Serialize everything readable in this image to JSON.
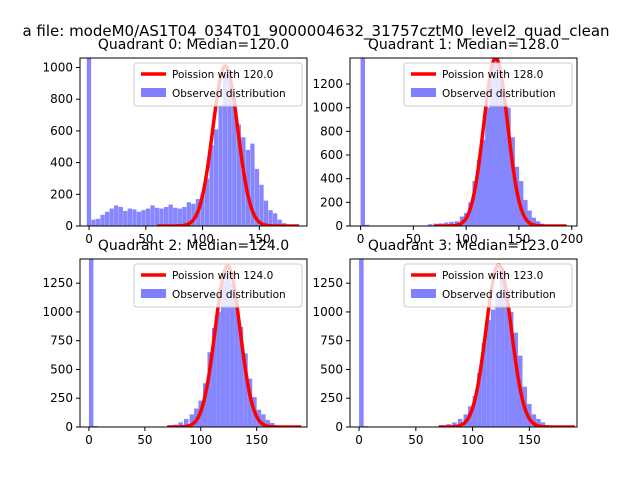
{
  "figure_title": "a file: modeM0/AS1T04_034T01_9000004632_31757cztM0_level2_quad_clean",
  "colors": {
    "observed": "#7f7fff",
    "poisson": "#ff0000",
    "axis": "#000000"
  },
  "chart_data": [
    {
      "type": "bar",
      "title": "Quadrant 0: Median=120.0",
      "legend": {
        "poisson_label": "Poission with 120.0",
        "observed_label": "Observed distribution",
        "placement": "top-right"
      },
      "xlim": [
        -8,
        192
      ],
      "ylim": [
        0,
        1060
      ],
      "xticks": [
        0,
        50,
        100,
        150
      ],
      "xtick_labels": [
        "0",
        "50",
        "100",
        "150"
      ],
      "yticks": [
        0,
        200,
        400,
        600,
        800,
        1000
      ],
      "ytick_labels": [
        "0",
        "200",
        "400",
        "600",
        "800",
        "1000"
      ],
      "bin_width": 3.8,
      "bins": [
        [
          -2,
          1060
        ],
        [
          2,
          40
        ],
        [
          6,
          45
        ],
        [
          10,
          70
        ],
        [
          14,
          90
        ],
        [
          18,
          110
        ],
        [
          22,
          130
        ],
        [
          26,
          120
        ],
        [
          30,
          95
        ],
        [
          34,
          110
        ],
        [
          38,
          105
        ],
        [
          42,
          90
        ],
        [
          46,
          100
        ],
        [
          50,
          110
        ],
        [
          54,
          130
        ],
        [
          58,
          115
        ],
        [
          62,
          110
        ],
        [
          66,
          120
        ],
        [
          70,
          135
        ],
        [
          74,
          115
        ],
        [
          78,
          110
        ],
        [
          82,
          120
        ],
        [
          86,
          150
        ],
        [
          90,
          140
        ],
        [
          94,
          170
        ],
        [
          98,
          200
        ],
        [
          102,
          300
        ],
        [
          106,
          510
        ],
        [
          110,
          610
        ],
        [
          114,
          760
        ],
        [
          118,
          960
        ],
        [
          122,
          970
        ],
        [
          126,
          810
        ],
        [
          130,
          640
        ],
        [
          134,
          560
        ],
        [
          138,
          480
        ],
        [
          142,
          520
        ],
        [
          146,
          360
        ],
        [
          150,
          260
        ],
        [
          154,
          160
        ],
        [
          158,
          100
        ],
        [
          162,
          80
        ],
        [
          166,
          40
        ],
        [
          170,
          18
        ]
      ],
      "poisson": {
        "peak": 1010,
        "mean": 120,
        "sigma": 11,
        "x_range": [
          60,
          185
        ]
      }
    },
    {
      "type": "bar",
      "title": "Quadrant 1: Median=128.0",
      "legend": {
        "poisson_label": "Poission with 128.0",
        "observed_label": "Observed distribution",
        "placement": "top-right"
      },
      "xlim": [
        -10,
        205
      ],
      "ylim": [
        0,
        1420
      ],
      "xticks": [
        0,
        50,
        100,
        150,
        200
      ],
      "xtick_labels": [
        "0",
        "50",
        "100",
        "150",
        "200"
      ],
      "yticks": [
        0,
        200,
        400,
        600,
        800,
        1000,
        1200
      ],
      "ytick_labels": [
        "0",
        "200",
        "400",
        "600",
        "800",
        "1000",
        "1200"
      ],
      "bin_width": 4.2,
      "bins": [
        [
          0,
          1420
        ],
        [
          4,
          10
        ],
        [
          64,
          15
        ],
        [
          69,
          20
        ],
        [
          74,
          22
        ],
        [
          79,
          30
        ],
        [
          84,
          35
        ],
        [
          89,
          40
        ],
        [
          94,
          80
        ],
        [
          98,
          110
        ],
        [
          102,
          200
        ],
        [
          106,
          380
        ],
        [
          110,
          560
        ],
        [
          114,
          730
        ],
        [
          118,
          1000
        ],
        [
          122,
          1250
        ],
        [
          126,
          1400
        ],
        [
          130,
          1260
        ],
        [
          134,
          1080
        ],
        [
          138,
          1000
        ],
        [
          142,
          750
        ],
        [
          146,
          500
        ],
        [
          150,
          380
        ],
        [
          154,
          220
        ],
        [
          158,
          130
        ],
        [
          162,
          70
        ],
        [
          166,
          40
        ],
        [
          170,
          20
        ],
        [
          175,
          10
        ]
      ],
      "poisson": {
        "peak": 1420,
        "mean": 128,
        "sigma": 11.3,
        "x_range": [
          70,
          195
        ]
      }
    },
    {
      "type": "bar",
      "title": "Quadrant 2: Median=124.0",
      "legend": {
        "poisson_label": "Poission with 124.0",
        "observed_label": "Observed distribution",
        "placement": "top-right"
      },
      "xlim": [
        -8,
        195
      ],
      "ylim": [
        0,
        1460
      ],
      "xticks": [
        0,
        50,
        100,
        150
      ],
      "xtick_labels": [
        "0",
        "50",
        "100",
        "150"
      ],
      "yticks": [
        0,
        250,
        500,
        750,
        1000,
        1250
      ],
      "ytick_labels": [
        "0",
        "250",
        "500",
        "750",
        "1000",
        "1250"
      ],
      "bin_width": 4.0,
      "bins": [
        [
          0,
          1460
        ],
        [
          4,
          8
        ],
        [
          70,
          15
        ],
        [
          75,
          20
        ],
        [
          80,
          40
        ],
        [
          85,
          70
        ],
        [
          90,
          110
        ],
        [
          94,
          160
        ],
        [
          98,
          230
        ],
        [
          102,
          380
        ],
        [
          106,
          650
        ],
        [
          110,
          860
        ],
        [
          114,
          1000
        ],
        [
          118,
          1270
        ],
        [
          122,
          1360
        ],
        [
          126,
          1250
        ],
        [
          130,
          1100
        ],
        [
          134,
          870
        ],
        [
          138,
          640
        ],
        [
          142,
          420
        ],
        [
          146,
          260
        ],
        [
          150,
          150
        ],
        [
          154,
          110
        ],
        [
          158,
          60
        ],
        [
          162,
          35
        ],
        [
          166,
          15
        ]
      ],
      "poisson": {
        "peak": 1400,
        "mean": 124,
        "sigma": 11.1,
        "x_range": [
          70,
          190
        ]
      }
    },
    {
      "type": "bar",
      "title": "Quadrant 3: Median=123.0",
      "legend": {
        "poisson_label": "Poission with 123.0",
        "observed_label": "Observed distribution",
        "placement": "top-right"
      },
      "xlim": [
        -8,
        192
      ],
      "ylim": [
        0,
        1460
      ],
      "xticks": [
        0,
        50,
        100,
        150
      ],
      "xtick_labels": [
        "0",
        "50",
        "100",
        "150"
      ],
      "yticks": [
        0,
        250,
        500,
        750,
        1000,
        1250
      ],
      "ytick_labels": [
        "0",
        "250",
        "500",
        "750",
        "1000",
        "1250"
      ],
      "bin_width": 4.0,
      "bins": [
        [
          0,
          1460
        ],
        [
          4,
          8
        ],
        [
          72,
          15
        ],
        [
          77,
          25
        ],
        [
          82,
          40
        ],
        [
          87,
          70
        ],
        [
          92,
          110
        ],
        [
          96,
          180
        ],
        [
          100,
          270
        ],
        [
          104,
          470
        ],
        [
          108,
          730
        ],
        [
          112,
          930
        ],
        [
          116,
          1020
        ],
        [
          120,
          1170
        ],
        [
          124,
          1390
        ],
        [
          128,
          1210
        ],
        [
          132,
          1000
        ],
        [
          136,
          820
        ],
        [
          140,
          620
        ],
        [
          144,
          350
        ],
        [
          148,
          200
        ],
        [
          152,
          110
        ],
        [
          156,
          70
        ],
        [
          160,
          40
        ],
        [
          164,
          15
        ]
      ],
      "poisson": {
        "peak": 1410,
        "mean": 123,
        "sigma": 11.1,
        "x_range": [
          70,
          190
        ]
      }
    }
  ]
}
